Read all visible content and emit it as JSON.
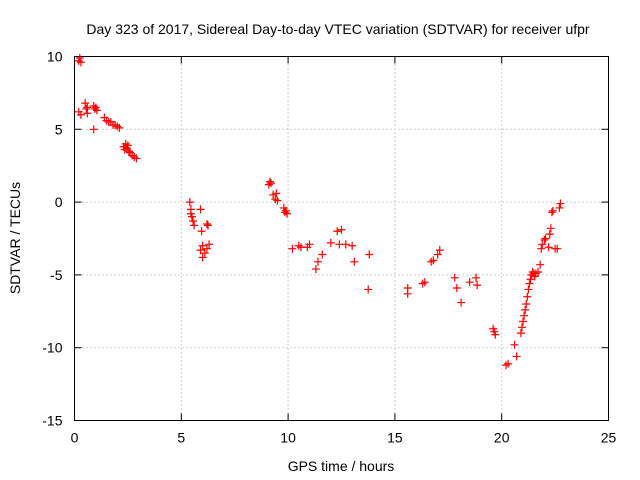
{
  "chart_data": {
    "type": "scatter",
    "title": "Day 323 of 2017, Sidereal Day-to-day VTEC variation (SDTVAR) for receiver ufpr",
    "xlabel": "GPS time / hours",
    "ylabel": "SDTVAR / TECUs",
    "xlim": [
      0,
      25
    ],
    "ylim": [
      -15,
      10
    ],
    "xticks": [
      0,
      5,
      10,
      15,
      20,
      25
    ],
    "yticks": [
      -15,
      -10,
      -5,
      0,
      5,
      10
    ],
    "grid": true,
    "marker": "plus",
    "color": "#ff0000",
    "series": [
      {
        "name": "SDTVAR",
        "x": [
          0.2,
          0.25,
          0.3,
          0.2,
          0.3,
          0.5,
          0.55,
          0.6,
          0.6,
          0.9,
          0.95,
          1.0,
          1.05,
          0.9,
          1.4,
          1.5,
          1.6,
          1.7,
          1.8,
          1.9,
          2.0,
          2.1,
          2.3,
          2.35,
          2.4,
          2.45,
          2.5,
          2.55,
          2.6,
          2.7,
          2.8,
          2.9,
          5.4,
          5.45,
          5.5,
          5.55,
          5.6,
          5.45,
          5.9,
          5.95,
          6.0,
          5.9,
          6.0,
          6.1,
          6.2,
          6.3,
          6.25,
          6.2,
          9.1,
          9.15,
          9.2,
          9.3,
          9.4,
          9.45,
          9.5,
          9.8,
          9.85,
          9.9,
          9.95,
          10.2,
          10.5,
          10.6,
          10.9,
          11.0,
          11.3,
          11.4,
          11.6,
          12.0,
          12.3,
          12.4,
          12.5,
          12.7,
          13.0,
          13.1,
          13.8,
          13.75,
          15.6,
          15.6,
          16.3,
          16.4,
          16.7,
          16.8,
          17.0,
          17.1,
          17.8,
          17.9,
          18.1,
          18.5,
          18.8,
          18.85,
          19.6,
          19.65,
          19.7,
          20.2,
          20.3,
          20.6,
          20.7,
          20.9,
          20.95,
          21.0,
          21.05,
          21.1,
          21.15,
          21.2,
          21.25,
          21.3,
          21.35,
          21.4,
          21.45,
          21.5,
          21.55,
          21.6,
          21.7,
          21.8,
          21.85,
          21.9,
          22.0,
          22.05,
          22.2,
          22.25,
          22.3,
          22.35,
          22.4,
          22.5,
          22.6,
          22.7,
          22.75
        ],
        "y": [
          9.7,
          9.9,
          9.6,
          6.2,
          6.0,
          6.8,
          6.4,
          6.1,
          6.5,
          5.0,
          6.4,
          6.5,
          6.3,
          6.6,
          5.8,
          5.6,
          5.5,
          5.5,
          5.3,
          5.3,
          5.2,
          5.1,
          3.8,
          3.6,
          4.0,
          3.7,
          3.9,
          3.5,
          3.4,
          3.2,
          3.1,
          3.0,
          0.0,
          -0.5,
          -1.0,
          -1.3,
          -1.6,
          -0.8,
          -0.5,
          -2.0,
          -3.0,
          -3.3,
          -3.8,
          -3.5,
          -3.2,
          -2.9,
          -1.6,
          -1.5,
          1.2,
          1.4,
          1.3,
          0.5,
          0.2,
          0.6,
          0.1,
          -0.4,
          -0.7,
          -0.6,
          -0.8,
          -3.2,
          -3.0,
          -3.1,
          -3.1,
          -2.9,
          -4.6,
          -4.1,
          -3.6,
          -2.8,
          -2.0,
          -2.9,
          -1.9,
          -2.9,
          -3.0,
          -4.1,
          -3.6,
          -6.0,
          -5.9,
          -6.3,
          -5.6,
          -5.5,
          -4.1,
          -4.0,
          -3.6,
          -3.3,
          -5.2,
          -5.9,
          -6.9,
          -5.5,
          -5.2,
          -5.7,
          -8.7,
          -8.9,
          -9.1,
          -11.2,
          -11.1,
          -9.8,
          -10.6,
          -9.0,
          -8.6,
          -8.2,
          -7.8,
          -7.4,
          -7.0,
          -6.5,
          -6.0,
          -5.6,
          -5.3,
          -5.0,
          -4.8,
          -4.9,
          -5.1,
          -4.9,
          -4.8,
          -4.3,
          -3.2,
          -2.9,
          -2.6,
          -2.5,
          -3.1,
          -2.2,
          -1.8,
          -0.7,
          -0.6,
          -3.2,
          -3.2,
          -0.4,
          -0.1
        ]
      }
    ]
  }
}
